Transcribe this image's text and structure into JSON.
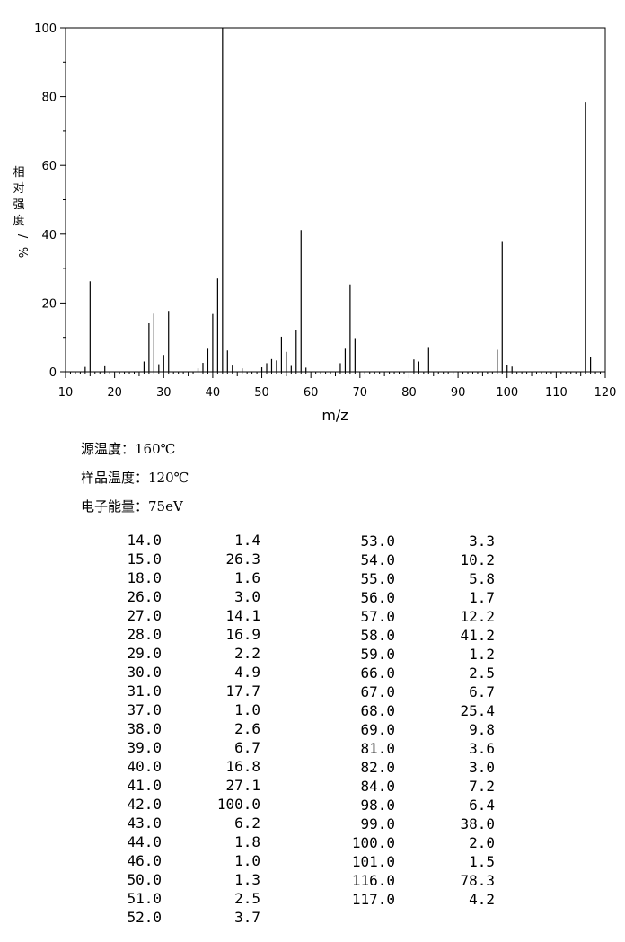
{
  "chart_data": {
    "type": "bar",
    "xlabel": "m/z",
    "ylabel": "相对强度/%",
    "xlim": [
      10,
      120
    ],
    "ylim": [
      0,
      100
    ],
    "xticks": [
      10,
      20,
      30,
      40,
      50,
      60,
      70,
      80,
      90,
      100,
      110,
      120
    ],
    "yticks": [
      0,
      20,
      40,
      60,
      80,
      100
    ],
    "grid": false,
    "peaks": [
      {
        "mz": 14.0,
        "intensity": 1.4
      },
      {
        "mz": 15.0,
        "intensity": 26.3
      },
      {
        "mz": 18.0,
        "intensity": 1.6
      },
      {
        "mz": 26.0,
        "intensity": 3.0
      },
      {
        "mz": 27.0,
        "intensity": 14.1
      },
      {
        "mz": 28.0,
        "intensity": 16.9
      },
      {
        "mz": 29.0,
        "intensity": 2.2
      },
      {
        "mz": 30.0,
        "intensity": 4.9
      },
      {
        "mz": 31.0,
        "intensity": 17.7
      },
      {
        "mz": 37.0,
        "intensity": 1.0
      },
      {
        "mz": 38.0,
        "intensity": 2.6
      },
      {
        "mz": 39.0,
        "intensity": 6.7
      },
      {
        "mz": 40.0,
        "intensity": 16.8
      },
      {
        "mz": 41.0,
        "intensity": 27.1
      },
      {
        "mz": 42.0,
        "intensity": 100.0
      },
      {
        "mz": 43.0,
        "intensity": 6.2
      },
      {
        "mz": 44.0,
        "intensity": 1.8
      },
      {
        "mz": 46.0,
        "intensity": 1.0
      },
      {
        "mz": 50.0,
        "intensity": 1.3
      },
      {
        "mz": 51.0,
        "intensity": 2.5
      },
      {
        "mz": 52.0,
        "intensity": 3.7
      },
      {
        "mz": 53.0,
        "intensity": 3.3
      },
      {
        "mz": 54.0,
        "intensity": 10.2
      },
      {
        "mz": 55.0,
        "intensity": 5.8
      },
      {
        "mz": 56.0,
        "intensity": 1.7
      },
      {
        "mz": 57.0,
        "intensity": 12.2
      },
      {
        "mz": 58.0,
        "intensity": 41.2
      },
      {
        "mz": 59.0,
        "intensity": 1.2
      },
      {
        "mz": 66.0,
        "intensity": 2.5
      },
      {
        "mz": 67.0,
        "intensity": 6.7
      },
      {
        "mz": 68.0,
        "intensity": 25.4
      },
      {
        "mz": 69.0,
        "intensity": 9.8
      },
      {
        "mz": 81.0,
        "intensity": 3.6
      },
      {
        "mz": 82.0,
        "intensity": 3.0
      },
      {
        "mz": 84.0,
        "intensity": 7.2
      },
      {
        "mz": 98.0,
        "intensity": 6.4
      },
      {
        "mz": 99.0,
        "intensity": 38.0
      },
      {
        "mz": 100.0,
        "intensity": 2.0
      },
      {
        "mz": 101.0,
        "intensity": 1.5
      },
      {
        "mz": 116.0,
        "intensity": 78.3
      },
      {
        "mz": 117.0,
        "intensity": 4.2
      }
    ]
  },
  "conditions": {
    "source_temp": "源温度：160℃",
    "sample_temp": "样品温度：120℃",
    "electron_energy": "电子能量：75eV"
  },
  "table": {
    "left": [
      [
        "14.0",
        "1.4"
      ],
      [
        "15.0",
        "26.3"
      ],
      [
        "18.0",
        "1.6"
      ],
      [
        "26.0",
        "3.0"
      ],
      [
        "27.0",
        "14.1"
      ],
      [
        "28.0",
        "16.9"
      ],
      [
        "29.0",
        "2.2"
      ],
      [
        "30.0",
        "4.9"
      ],
      [
        "31.0",
        "17.7"
      ],
      [
        "37.0",
        "1.0"
      ],
      [
        "38.0",
        "2.6"
      ],
      [
        "39.0",
        "6.7"
      ],
      [
        "40.0",
        "16.8"
      ],
      [
        "41.0",
        "27.1"
      ],
      [
        "42.0",
        "100.0"
      ],
      [
        "43.0",
        "6.2"
      ],
      [
        "44.0",
        "1.8"
      ],
      [
        "46.0",
        "1.0"
      ],
      [
        "50.0",
        "1.3"
      ],
      [
        "51.0",
        "2.5"
      ],
      [
        "52.0",
        "3.7"
      ]
    ],
    "right": [
      [
        "53.0",
        "3.3"
      ],
      [
        "54.0",
        "10.2"
      ],
      [
        "55.0",
        "5.8"
      ],
      [
        "56.0",
        "1.7"
      ],
      [
        "57.0",
        "12.2"
      ],
      [
        "58.0",
        "41.2"
      ],
      [
        "59.0",
        "1.2"
      ],
      [
        "66.0",
        "2.5"
      ],
      [
        "67.0",
        "6.7"
      ],
      [
        "68.0",
        "25.4"
      ],
      [
        "69.0",
        "9.8"
      ],
      [
        "81.0",
        "3.6"
      ],
      [
        "82.0",
        "3.0"
      ],
      [
        "84.0",
        "7.2"
      ],
      [
        "98.0",
        "6.4"
      ],
      [
        "99.0",
        "38.0"
      ],
      [
        "100.0",
        "2.0"
      ],
      [
        "101.0",
        "1.5"
      ],
      [
        "116.0",
        "78.3"
      ],
      [
        "117.0",
        "4.2"
      ]
    ]
  }
}
